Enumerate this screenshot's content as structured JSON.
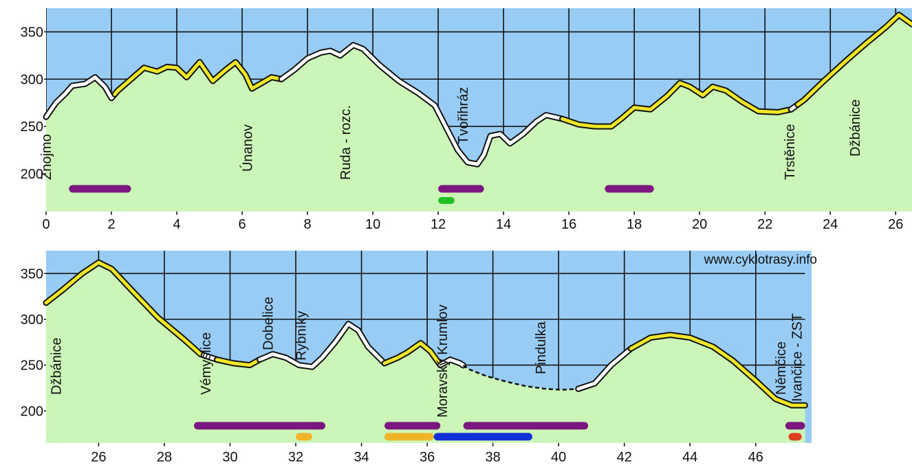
{
  "chart_data": [
    {
      "type": "area",
      "title": "",
      "xlabel": "",
      "ylabel": "",
      "xlim": [
        0,
        26.5
      ],
      "ylim": [
        160,
        375
      ],
      "x_ticks": [
        0,
        2,
        4,
        6,
        8,
        10,
        12,
        14,
        16,
        18,
        20,
        22,
        24,
        26
      ],
      "y_ticks": [
        200,
        250,
        300,
        350
      ],
      "colors": {
        "sky": "#99ccf4",
        "ground": "#ccf5b8",
        "grid": "#111111",
        "yellow": "#f0e628",
        "white": "#ffffff"
      },
      "profile": [
        [
          0,
          260
        ],
        [
          0.3,
          275
        ],
        [
          0.6,
          285
        ],
        [
          0.8,
          293
        ],
        [
          1.2,
          295
        ],
        [
          1.5,
          302
        ],
        [
          1.8,
          292
        ],
        [
          2,
          280
        ],
        [
          2.2,
          288
        ],
        [
          2.6,
          300
        ],
        [
          3,
          312
        ],
        [
          3.4,
          308
        ],
        [
          3.7,
          313
        ],
        [
          4,
          312
        ],
        [
          4.3,
          302
        ],
        [
          4.7,
          318
        ],
        [
          5.1,
          298
        ],
        [
          5.5,
          310
        ],
        [
          5.8,
          318
        ],
        [
          6.1,
          305
        ],
        [
          6.3,
          290
        ],
        [
          6.6,
          296
        ],
        [
          6.9,
          302
        ],
        [
          7.2,
          300
        ],
        [
          7.6,
          310
        ],
        [
          8,
          322
        ],
        [
          8.4,
          328
        ],
        [
          8.7,
          330
        ],
        [
          9,
          325
        ],
        [
          9.4,
          336
        ],
        [
          9.7,
          332
        ],
        [
          10.2,
          315
        ],
        [
          10.8,
          298
        ],
        [
          11.4,
          285
        ],
        [
          11.9,
          272
        ],
        [
          12.3,
          245
        ],
        [
          12.6,
          225
        ],
        [
          12.9,
          212
        ],
        [
          13.2,
          210
        ],
        [
          13.4,
          220
        ],
        [
          13.6,
          240
        ],
        [
          13.9,
          242
        ],
        [
          14.2,
          232
        ],
        [
          14.6,
          242
        ],
        [
          15,
          255
        ],
        [
          15.3,
          262
        ],
        [
          15.8,
          258
        ],
        [
          16.3,
          252
        ],
        [
          16.8,
          250
        ],
        [
          17.3,
          250
        ],
        [
          17.6,
          258
        ],
        [
          18,
          270
        ],
        [
          18.5,
          268
        ],
        [
          19,
          282
        ],
        [
          19.4,
          296
        ],
        [
          19.7,
          292
        ],
        [
          20.1,
          283
        ],
        [
          20.4,
          292
        ],
        [
          20.8,
          288
        ],
        [
          21.3,
          276
        ],
        [
          21.8,
          266
        ],
        [
          22.4,
          265
        ],
        [
          22.8,
          268
        ],
        [
          23.2,
          278
        ],
        [
          23.8,
          298
        ],
        [
          24.5,
          320
        ],
        [
          25.1,
          338
        ],
        [
          25.7,
          355
        ],
        [
          26.1,
          368
        ],
        [
          26.5,
          358
        ]
      ],
      "segments": [
        {
          "color": "white",
          "from": 0,
          "to": 2.1
        },
        {
          "color": "yellow",
          "from": 2.1,
          "to": 7.2
        },
        {
          "color": "white",
          "from": 7.2,
          "to": 15.8
        },
        {
          "color": "yellow",
          "from": 15.8,
          "to": 22.8
        },
        {
          "color": "white",
          "from": 22.8,
          "to": 23
        },
        {
          "color": "yellow",
          "from": 23,
          "to": 26.5
        }
      ],
      "places": [
        {
          "label": "Znojmo",
          "x": 0.15
        },
        {
          "label": "Únanov",
          "x": 6.3
        },
        {
          "label": "Ruda - rozc.",
          "x": 9.3
        },
        {
          "label": "Tvořihráz",
          "x": 12.9
        },
        {
          "label": "Trstěnice",
          "x": 22.9
        },
        {
          "label": "Džbánice",
          "x": 24.9
        }
      ],
      "bars": [
        {
          "color": "#7b1880",
          "from": 0.7,
          "to": 2.6
        },
        {
          "color": "#7b1880",
          "from": 12,
          "to": 13.4
        },
        {
          "color": "#7b1880",
          "from": 17.1,
          "to": 18.6
        },
        {
          "color": "#22c022",
          "from": 12,
          "to": 12.5
        }
      ]
    },
    {
      "type": "area",
      "title": "",
      "xlabel": "",
      "ylabel": "",
      "xlim": [
        24.4,
        47.7
      ],
      "ylim": [
        165,
        375
      ],
      "x_ticks": [
        26,
        28,
        30,
        32,
        34,
        36,
        38,
        40,
        42,
        44,
        46
      ],
      "y_ticks": [
        200,
        250,
        300,
        350
      ],
      "watermark": "www.cyklotrasy.info",
      "profile": [
        [
          24.4,
          318
        ],
        [
          24.9,
          332
        ],
        [
          25.5,
          350
        ],
        [
          26,
          362
        ],
        [
          26.4,
          355
        ],
        [
          27,
          332
        ],
        [
          27.8,
          302
        ],
        [
          28.6,
          278
        ],
        [
          29.1,
          262
        ],
        [
          29.6,
          256
        ],
        [
          30.1,
          252
        ],
        [
          30.6,
          250
        ],
        [
          30.9,
          256
        ],
        [
          31.3,
          262
        ],
        [
          31.7,
          258
        ],
        [
          32.1,
          250
        ],
        [
          32.5,
          248
        ],
        [
          32.8,
          258
        ],
        [
          33.2,
          275
        ],
        [
          33.6,
          295
        ],
        [
          33.9,
          288
        ],
        [
          34.2,
          270
        ],
        [
          34.7,
          252
        ],
        [
          35.1,
          258
        ],
        [
          35.4,
          264
        ],
        [
          35.8,
          274
        ],
        [
          36.1,
          265
        ],
        [
          36.4,
          250
        ],
        [
          36.7,
          256
        ],
        [
          37,
          252
        ],
        [
          37.3,
          245
        ],
        [
          37.8,
          238
        ],
        [
          38.4,
          232
        ],
        [
          39,
          227
        ],
        [
          39.6,
          224
        ],
        [
          40.1,
          223
        ],
        [
          40.6,
          224
        ],
        [
          41.1,
          230
        ],
        [
          41.6,
          250
        ],
        [
          42.2,
          268
        ],
        [
          42.8,
          280
        ],
        [
          43.4,
          283
        ],
        [
          44,
          280
        ],
        [
          44.7,
          270
        ],
        [
          45.3,
          255
        ],
        [
          46,
          233
        ],
        [
          46.6,
          213
        ],
        [
          47.1,
          206
        ],
        [
          47.5,
          206
        ]
      ],
      "segments": [
        {
          "color": "yellow",
          "from": 24.4,
          "to": 29.2
        },
        {
          "color": "white",
          "from": 29.2,
          "to": 29.6
        },
        {
          "color": "yellow",
          "from": 29.6,
          "to": 30.9
        },
        {
          "color": "white",
          "from": 30.9,
          "to": 34.7
        },
        {
          "color": "yellow",
          "from": 34.7,
          "to": 36.4
        },
        {
          "color": "white",
          "from": 36.4,
          "to": 37.1
        },
        {
          "color": "dash",
          "from": 37.1,
          "to": 40.6
        },
        {
          "color": "white",
          "from": 40.6,
          "to": 42.2
        },
        {
          "color": "yellow",
          "from": 42.2,
          "to": 47.5
        }
      ],
      "places": [
        {
          "label": "Džbánice",
          "x": 24.85
        },
        {
          "label": "Vémyslice",
          "x": 29.4
        },
        {
          "label": "Dobelice",
          "x": 31.3
        },
        {
          "label": "Rybníky",
          "x": 32.3
        },
        {
          "label": "Moravský Krumlov",
          "x": 36.6
        },
        {
          "label": "Pindulka",
          "x": 39.6
        },
        {
          "label": "Němčice",
          "x": 46.9
        },
        {
          "label": "Ivančice - ZST",
          "x": 47.4
        }
      ],
      "bars": [
        {
          "color": "#7b1880",
          "from": 28.9,
          "to": 32.9,
          "row": 0
        },
        {
          "color": "#f0b428",
          "from": 32,
          "to": 32.5,
          "row": 1
        },
        {
          "color": "#7b1880",
          "from": 34.7,
          "to": 36.4,
          "row": 0
        },
        {
          "color": "#f0b428",
          "from": 34.7,
          "to": 36.2,
          "row": 1
        },
        {
          "color": "#1030d8",
          "from": 36.2,
          "to": 39.2,
          "row": 1
        },
        {
          "color": "#7b1880",
          "from": 37.1,
          "to": 40.9,
          "row": 0
        },
        {
          "color": "#7b1880",
          "from": 46.9,
          "to": 47.5,
          "row": 0
        },
        {
          "color": "#e04020",
          "from": 47,
          "to": 47.4,
          "row": 1
        }
      ]
    }
  ]
}
